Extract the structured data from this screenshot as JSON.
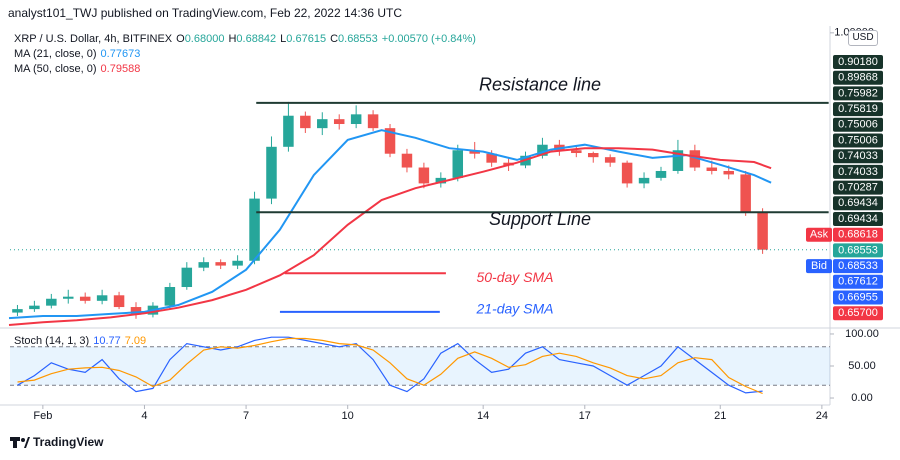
{
  "header": {
    "byline": "analyst101_TWJ published on TradingView.com, Feb 22, 2022 14:36 UTC"
  },
  "footer": {
    "brand": "TradingView"
  },
  "chart_data": [
    {
      "type": "candlestick",
      "title": "XRP / U.S. Dollar, 4h, BITFINEX",
      "ohlc_legend": [
        {
          "key": "O",
          "value": "0.68000"
        },
        {
          "key": "H",
          "value": "0.68842"
        },
        {
          "key": "L",
          "value": "0.67615"
        },
        {
          "key": "C",
          "value": "0.68553"
        }
      ],
      "change": "+0.00570 (+0.84%)",
      "currency": "USD",
      "up_color": "#26a69a",
      "down_color": "#ef5350",
      "x": [
        -0.75,
        -0.25,
        0.25,
        0.75,
        1.25,
        1.75,
        2.25,
        2.75,
        3.25,
        3.75,
        4.25,
        4.75,
        5.25,
        5.75,
        6.25,
        6.75,
        7.25,
        7.75,
        8.25,
        8.75,
        9.25,
        9.75,
        10.25,
        10.75,
        11.25,
        11.75,
        12.25,
        12.75,
        13.25,
        13.75,
        14.25,
        14.75,
        15.25,
        15.75,
        16.25,
        16.75,
        17.25,
        17.75,
        18.25,
        18.75,
        19.25,
        19.75,
        20.25,
        20.75,
        21.25
      ],
      "open": [
        0.595,
        0.6,
        0.605,
        0.615,
        0.618,
        0.612,
        0.62,
        0.603,
        0.592,
        0.605,
        0.632,
        0.66,
        0.668,
        0.663,
        0.67,
        0.76,
        0.835,
        0.88,
        0.862,
        0.875,
        0.868,
        0.882,
        0.862,
        0.825,
        0.805,
        0.782,
        0.79,
        0.83,
        0.825,
        0.812,
        0.808,
        0.822,
        0.838,
        0.83,
        0.826,
        0.82,
        0.812,
        0.782,
        0.79,
        0.8,
        0.83,
        0.805,
        0.8,
        0.795,
        0.74
      ],
      "high": [
        0.606,
        0.612,
        0.622,
        0.628,
        0.624,
        0.628,
        0.625,
        0.61,
        0.61,
        0.638,
        0.668,
        0.675,
        0.672,
        0.678,
        0.77,
        0.85,
        0.9,
        0.886,
        0.885,
        0.882,
        0.895,
        0.888,
        0.868,
        0.832,
        0.812,
        0.798,
        0.838,
        0.842,
        0.83,
        0.82,
        0.828,
        0.848,
        0.845,
        0.836,
        0.828,
        0.824,
        0.815,
        0.798,
        0.806,
        0.845,
        0.838,
        0.815,
        0.808,
        0.8,
        0.746
      ],
      "low": [
        0.59,
        0.596,
        0.601,
        0.608,
        0.608,
        0.607,
        0.6,
        0.586,
        0.588,
        0.6,
        0.628,
        0.655,
        0.658,
        0.658,
        0.665,
        0.752,
        0.828,
        0.855,
        0.852,
        0.86,
        0.862,
        0.858,
        0.82,
        0.798,
        0.775,
        0.776,
        0.785,
        0.818,
        0.806,
        0.8,
        0.804,
        0.818,
        0.822,
        0.82,
        0.812,
        0.806,
        0.776,
        0.775,
        0.786,
        0.796,
        0.8,
        0.795,
        0.788,
        0.735,
        0.68
      ],
      "close": [
        0.6,
        0.605,
        0.615,
        0.618,
        0.612,
        0.62,
        0.603,
        0.592,
        0.605,
        0.632,
        0.66,
        0.668,
        0.663,
        0.67,
        0.76,
        0.835,
        0.88,
        0.862,
        0.875,
        0.868,
        0.882,
        0.862,
        0.825,
        0.805,
        0.782,
        0.79,
        0.83,
        0.825,
        0.812,
        0.808,
        0.822,
        0.838,
        0.83,
        0.826,
        0.82,
        0.812,
        0.782,
        0.79,
        0.8,
        0.83,
        0.805,
        0.8,
        0.795,
        0.74,
        0.686
      ],
      "series": [
        {
          "name": "MA (21, close, 0)",
          "last": "0.77673",
          "color": "#2196f3",
          "x": [
            -1,
            0,
            1,
            2,
            3,
            4,
            5,
            6,
            7,
            8,
            9,
            10,
            11,
            12,
            13,
            14,
            15,
            16,
            17,
            18,
            19,
            20,
            21,
            21.5
          ],
          "values": [
            0.587,
            0.59,
            0.59,
            0.593,
            0.596,
            0.606,
            0.625,
            0.657,
            0.715,
            0.794,
            0.845,
            0.859,
            0.848,
            0.833,
            0.828,
            0.816,
            0.831,
            0.838,
            0.828,
            0.819,
            0.823,
            0.809,
            0.794,
            0.783
          ]
        },
        {
          "name": "MA (50, close, 0)",
          "last": "0.79588",
          "color": "#f23645",
          "x": [
            -1,
            0,
            1,
            2,
            3,
            4,
            5,
            6,
            7,
            8,
            9,
            10,
            11,
            12,
            13,
            14,
            15,
            16,
            17,
            18,
            19,
            20,
            21,
            21.5
          ],
          "values": [
            0.577,
            0.581,
            0.584,
            0.588,
            0.594,
            0.602,
            0.613,
            0.628,
            0.649,
            0.678,
            0.722,
            0.758,
            0.775,
            0.787,
            0.799,
            0.812,
            0.828,
            0.833,
            0.833,
            0.831,
            0.823,
            0.816,
            0.813,
            0.804
          ]
        }
      ],
      "drawings": [
        {
          "label": "Resistance line",
          "color": "#1f3b33",
          "value": 0.89868,
          "x": [
            6.3,
            23.2
          ]
        },
        {
          "label": "Support Line",
          "color": "#1f3b33",
          "value": 0.74033,
          "x": [
            6.3,
            23.2
          ]
        },
        {
          "label": "50-day SMA",
          "color": "#f23645",
          "value": 0.652,
          "x": [
            7.14,
            11.9
          ]
        },
        {
          "label": "21-day SMA",
          "color": "#2962ff",
          "value": 0.596,
          "x": [
            7.0,
            11.72
          ]
        }
      ],
      "xlim": [
        -0.97,
        23.24
      ],
      "ylim": [
        0.577,
        1.007
      ],
      "xticks": [
        {
          "value": 0,
          "label": "Feb"
        },
        {
          "value": 3,
          "label": "4"
        },
        {
          "value": 6,
          "label": "7"
        },
        {
          "value": 9,
          "label": "10"
        },
        {
          "value": 13,
          "label": "14"
        },
        {
          "value": 16,
          "label": "17"
        },
        {
          "value": 20,
          "label": "21"
        },
        {
          "value": 23,
          "label": "24"
        }
      ],
      "yticks": [
        {
          "value": 1.0,
          "label": "1.00000"
        }
      ],
      "grid": false,
      "price_labels": [
        {
          "value": 0.9018,
          "label": "0.90180",
          "color": "#17332a"
        },
        {
          "value": 0.89868,
          "label": "0.89868",
          "color": "#17332a"
        },
        {
          "value": 0.75982,
          "label": "0.75982",
          "color": "#17332a"
        },
        {
          "value": 0.75819,
          "label": "0.75819",
          "color": "#17332a"
        },
        {
          "value": 0.75006,
          "label": "0.75006",
          "color": "#17332a"
        },
        {
          "value": 0.75006,
          "label": "0.75006",
          "color": "#17332a"
        },
        {
          "value": 0.74033,
          "label": "0.74033",
          "color": "#17332a"
        },
        {
          "value": 0.74033,
          "label": "0.74033",
          "color": "#17332a"
        },
        {
          "value": 0.70287,
          "label": "0.70287",
          "color": "#17332a"
        },
        {
          "value": 0.69434,
          "label": "0.69434",
          "color": "#17332a"
        },
        {
          "value": 0.69434,
          "label": "0.69434",
          "color": "#17332a"
        },
        {
          "value": 0.68618,
          "label": "0.68618",
          "color": "#f23645",
          "tag": "Ask"
        },
        {
          "value": 0.68553,
          "label": "0.68553",
          "color": "#26a69a"
        },
        {
          "value": 0.68533,
          "label": "0.68533",
          "color": "#2962ff",
          "tag": "Bid"
        },
        {
          "value": 0.67612,
          "label": "0.67612",
          "color": "#2962ff"
        },
        {
          "value": 0.66955,
          "label": "0.66955",
          "color": "#2962ff"
        },
        {
          "value": 0.657,
          "label": "0.65700",
          "color": "#f23645"
        }
      ]
    },
    {
      "type": "line",
      "title": "Stoch (14, 1, 3)",
      "x": [
        -0.75,
        -0.25,
        0.25,
        0.75,
        1.25,
        1.75,
        2.25,
        2.75,
        3.25,
        3.75,
        4.25,
        4.75,
        5.25,
        5.75,
        6.25,
        6.75,
        7.25,
        7.75,
        8.25,
        8.75,
        9.25,
        9.75,
        10.25,
        10.75,
        11.25,
        11.75,
        12.25,
        12.75,
        13.25,
        13.75,
        14.25,
        14.75,
        15.25,
        15.75,
        16.25,
        16.75,
        17.25,
        17.75,
        18.25,
        18.75,
        19.25,
        19.75,
        20.25,
        20.75,
        21.25
      ],
      "series": [
        {
          "last": "10.77",
          "color": "#2962ff",
          "values": [
            20,
            35,
            55,
            45,
            40,
            60,
            30,
            10,
            15,
            60,
            85,
            80,
            75,
            80,
            90,
            95,
            95,
            90,
            85,
            80,
            85,
            60,
            20,
            10,
            30,
            70,
            85,
            60,
            40,
            45,
            70,
            80,
            60,
            55,
            50,
            35,
            20,
            35,
            50,
            80,
            60,
            40,
            20,
            8,
            10.77
          ]
        },
        {
          "last": "7.09",
          "color": "#ff9800",
          "values": [
            25,
            28,
            38,
            45,
            47,
            48,
            43,
            33,
            18,
            28,
            53,
            75,
            80,
            78,
            82,
            88,
            93,
            93,
            90,
            85,
            83,
            75,
            55,
            30,
            20,
            37,
            62,
            72,
            62,
            48,
            52,
            65,
            70,
            65,
            55,
            47,
            35,
            30,
            35,
            55,
            63,
            60,
            32,
            18,
            7.09
          ]
        }
      ],
      "band": [
        20,
        80
      ],
      "xlim": [
        -0.97,
        23.24
      ],
      "ylim": [
        -10.9,
        106.2
      ],
      "yticks": [
        {
          "value": 100,
          "label": "100.00"
        },
        {
          "value": 50,
          "label": "50.00"
        },
        {
          "value": 0,
          "label": "0.00"
        }
      ]
    }
  ]
}
